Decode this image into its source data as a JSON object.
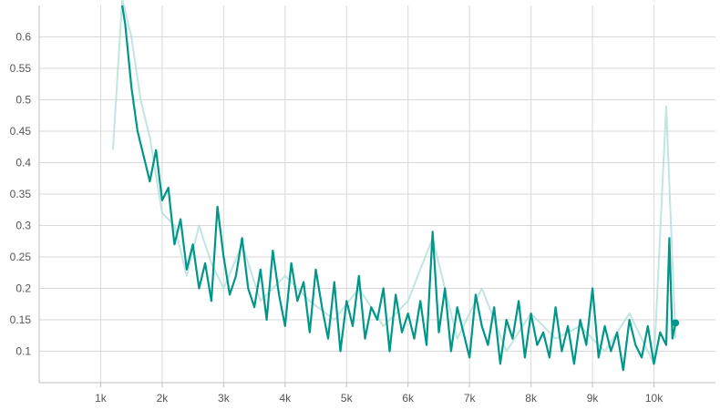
{
  "chart_data": {
    "type": "line",
    "title": "",
    "xlabel": "",
    "ylabel": "",
    "xlim": [
      0,
      11000
    ],
    "ylim": [
      0.05,
      0.65
    ],
    "x_ticks": [
      1000,
      2000,
      3000,
      4000,
      5000,
      6000,
      7000,
      8000,
      9000,
      10000
    ],
    "x_tick_labels": [
      "1k",
      "2k",
      "3k",
      "4k",
      "5k",
      "6k",
      "7k",
      "8k",
      "9k",
      "10k"
    ],
    "y_ticks": [
      0.1,
      0.15,
      0.2,
      0.25,
      0.3,
      0.35,
      0.4,
      0.45,
      0.5,
      0.55,
      0.6
    ],
    "y_tick_labels": [
      "0.1",
      "0.15",
      "0.2",
      "0.25",
      "0.3",
      "0.35",
      "0.4",
      "0.45",
      "0.5",
      "0.55",
      "0.6"
    ],
    "grid": true,
    "colors": {
      "smoothed": "#009688",
      "raw": "#b2dfdb",
      "grid": "#d9d9d9",
      "axis": "#bdbdbd"
    },
    "series": [
      {
        "role": "raw",
        "x": [
          1200,
          1350,
          1500,
          1650,
          1800,
          2000,
          2200,
          2400,
          2600,
          2800,
          3000,
          3300,
          3600,
          4000,
          4400,
          4800,
          5200,
          5600,
          6000,
          6400,
          6800,
          7200,
          7600,
          8000,
          8400,
          8800,
          9200,
          9600,
          10000,
          10200,
          10350
        ],
        "y": [
          0.42,
          0.66,
          0.6,
          0.5,
          0.44,
          0.32,
          0.3,
          0.22,
          0.3,
          0.24,
          0.2,
          0.27,
          0.18,
          0.22,
          0.18,
          0.15,
          0.2,
          0.14,
          0.18,
          0.28,
          0.12,
          0.2,
          0.1,
          0.16,
          0.12,
          0.14,
          0.1,
          0.16,
          0.08,
          0.49,
          0.12
        ]
      },
      {
        "role": "smoothed",
        "x": [
          1350,
          1400,
          1500,
          1600,
          1700,
          1800,
          1900,
          2000,
          2100,
          2200,
          2300,
          2400,
          2500,
          2600,
          2700,
          2800,
          2900,
          3000,
          3100,
          3200,
          3300,
          3400,
          3500,
          3600,
          3700,
          3800,
          3900,
          4000,
          4100,
          4200,
          4300,
          4400,
          4500,
          4600,
          4700,
          4800,
          4900,
          5000,
          5100,
          5200,
          5300,
          5400,
          5500,
          5600,
          5700,
          5800,
          5900,
          6000,
          6100,
          6200,
          6300,
          6400,
          6500,
          6600,
          6700,
          6800,
          6900,
          7000,
          7100,
          7200,
          7300,
          7400,
          7500,
          7600,
          7700,
          7800,
          7900,
          8000,
          8100,
          8200,
          8300,
          8400,
          8500,
          8600,
          8700,
          8800,
          8900,
          9000,
          9100,
          9200,
          9300,
          9400,
          9500,
          9600,
          9700,
          9800,
          9900,
          10000,
          10100,
          10200,
          10250,
          10300,
          10350
        ],
        "y": [
          0.65,
          0.62,
          0.52,
          0.45,
          0.41,
          0.37,
          0.42,
          0.34,
          0.36,
          0.27,
          0.31,
          0.23,
          0.27,
          0.2,
          0.24,
          0.18,
          0.33,
          0.25,
          0.19,
          0.22,
          0.28,
          0.2,
          0.17,
          0.23,
          0.15,
          0.26,
          0.19,
          0.14,
          0.24,
          0.18,
          0.21,
          0.13,
          0.23,
          0.17,
          0.12,
          0.21,
          0.1,
          0.18,
          0.14,
          0.22,
          0.12,
          0.17,
          0.15,
          0.2,
          0.1,
          0.19,
          0.13,
          0.16,
          0.12,
          0.18,
          0.11,
          0.29,
          0.13,
          0.2,
          0.1,
          0.17,
          0.13,
          0.09,
          0.19,
          0.14,
          0.11,
          0.17,
          0.08,
          0.15,
          0.12,
          0.18,
          0.09,
          0.16,
          0.11,
          0.13,
          0.09,
          0.17,
          0.1,
          0.14,
          0.08,
          0.15,
          0.11,
          0.2,
          0.09,
          0.14,
          0.1,
          0.13,
          0.07,
          0.15,
          0.11,
          0.09,
          0.14,
          0.08,
          0.13,
          0.11,
          0.28,
          0.12,
          0.145
        ]
      }
    ]
  }
}
